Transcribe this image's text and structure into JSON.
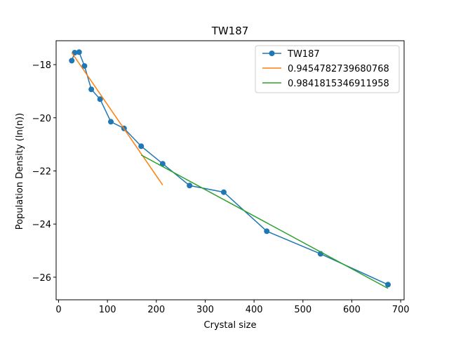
{
  "chart_data": {
    "type": "line",
    "title": "TW187",
    "xlabel": "Crystal size",
    "ylabel": "Population Density (ln(n))",
    "xlim": [
      -5,
      707
    ],
    "ylim": [
      -26.85,
      -17.1
    ],
    "xticks": [
      0,
      100,
      200,
      300,
      400,
      500,
      600,
      700
    ],
    "yticks": [
      -26,
      -24,
      -22,
      -20,
      -18
    ],
    "xtick_labels": [
      "0",
      "100",
      "200",
      "300",
      "400",
      "500",
      "600",
      "700"
    ],
    "ytick_labels": [
      "−26",
      "−24",
      "−22",
      "−20",
      "−18"
    ],
    "grid": false,
    "legend_position": "top-right",
    "series": [
      {
        "name": "TW187",
        "style": "line-marker",
        "color": "#1f77b4",
        "x": [
          27,
          33,
          42,
          53,
          67,
          85,
          107,
          134,
          169,
          213,
          268,
          338,
          426,
          536,
          674
        ],
        "y": [
          -17.85,
          -17.55,
          -17.53,
          -18.05,
          -18.93,
          -19.3,
          -20.15,
          -20.4,
          -21.07,
          -21.73,
          -22.55,
          -22.8,
          -24.27,
          -25.12,
          -26.28
        ]
      },
      {
        "name": "0.9454782739680768",
        "style": "line",
        "color": "#ff7f0e",
        "x": [
          27,
          213
        ],
        "y": [
          -17.55,
          -22.53
        ]
      },
      {
        "name": "0.9841815346911958",
        "style": "line",
        "color": "#2ca02c",
        "x": [
          169,
          674
        ],
        "y": [
          -21.4,
          -26.42
        ]
      }
    ]
  }
}
